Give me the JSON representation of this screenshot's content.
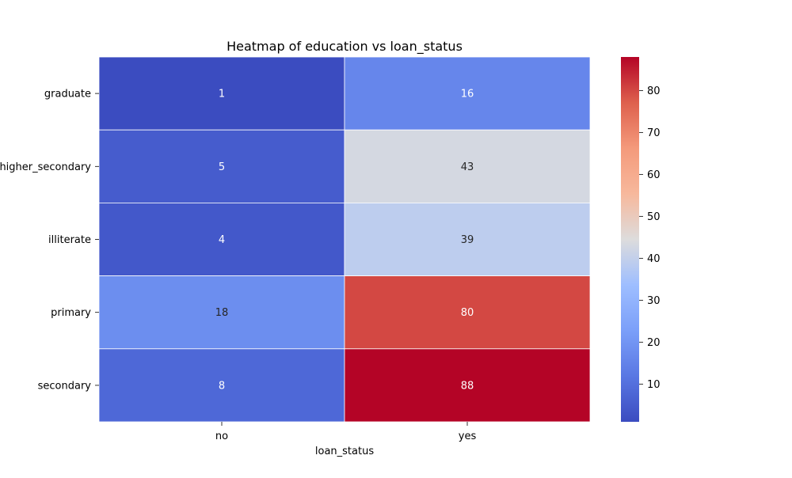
{
  "chart_data": {
    "type": "heatmap",
    "title": "Heatmap of education vs loan_status",
    "xlabel": "loan_status",
    "ylabel": "",
    "x_categories": [
      "no",
      "yes"
    ],
    "y_categories": [
      "graduate",
      "higher_secondary",
      "illiterate",
      "primary",
      "secondary"
    ],
    "values": [
      [
        1,
        16
      ],
      [
        5,
        43
      ],
      [
        4,
        39
      ],
      [
        18,
        80
      ],
      [
        8,
        88
      ]
    ],
    "colormap": "coolwarm",
    "colorbar": {
      "vmin": 1,
      "vmax": 88,
      "ticks": [
        10,
        20,
        30,
        40,
        50,
        60,
        70,
        80
      ]
    },
    "annotations": true,
    "cell_line_color": "#ffffff"
  }
}
